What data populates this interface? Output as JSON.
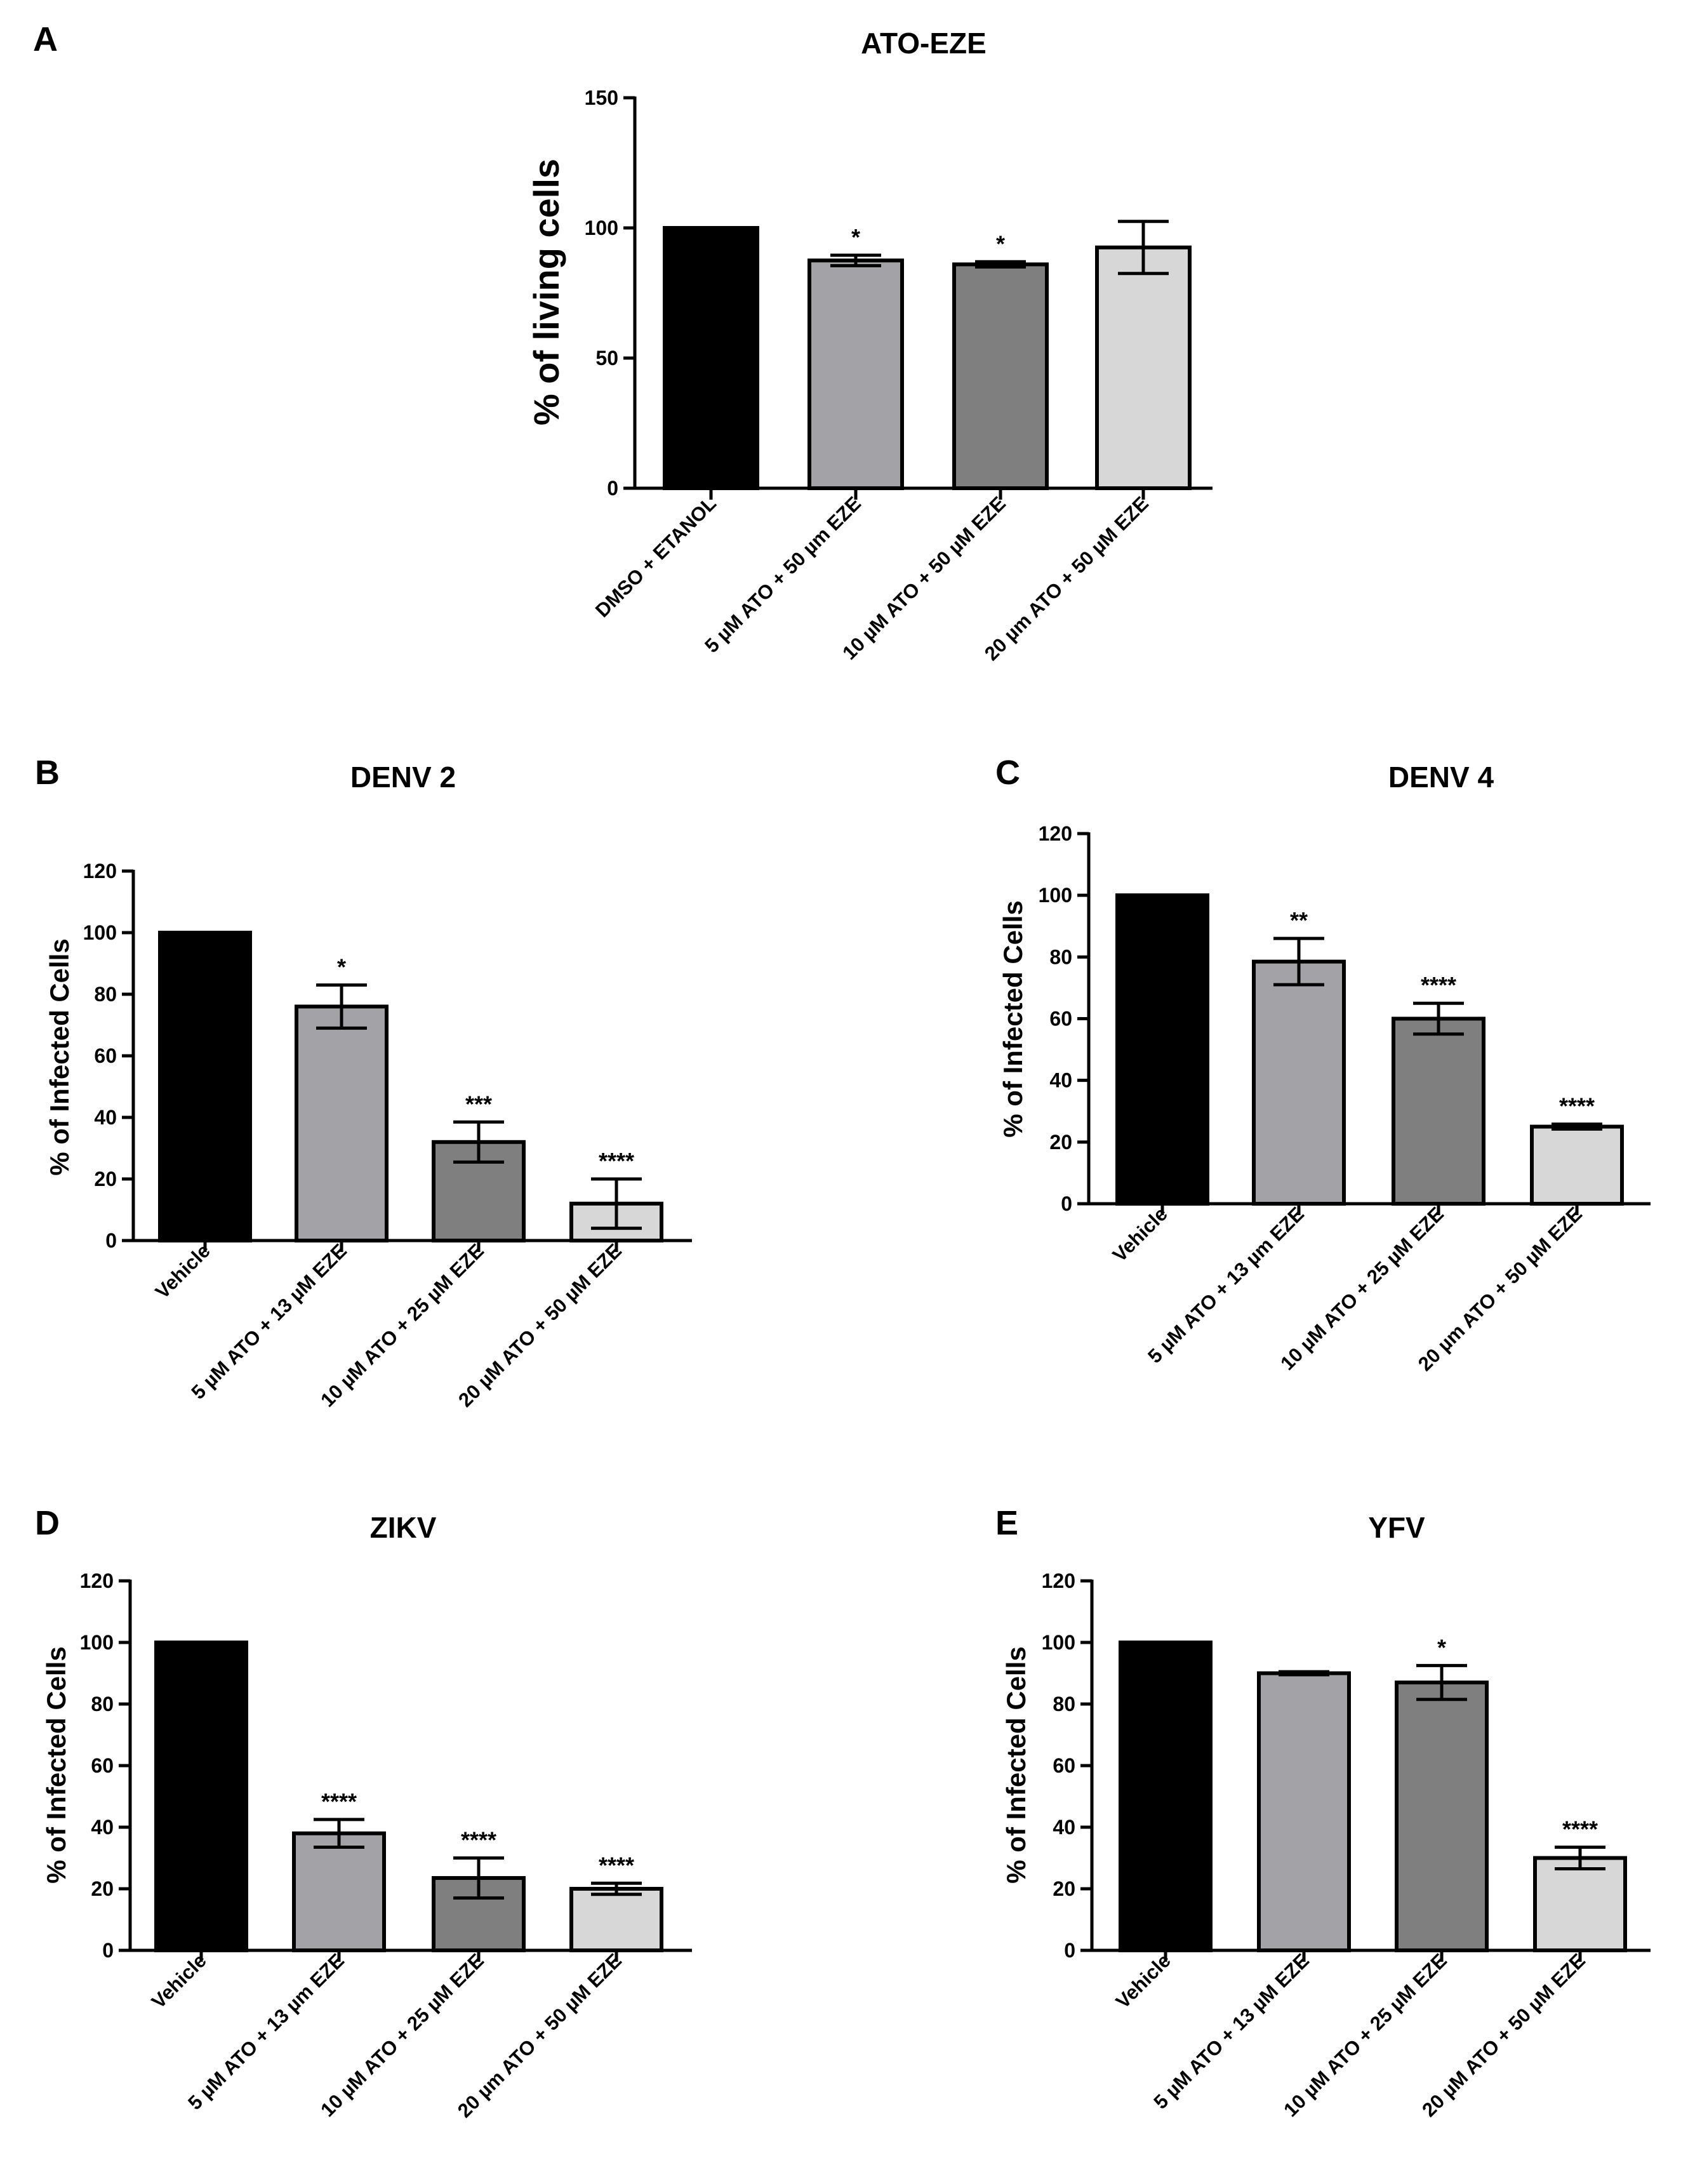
{
  "colors": [
    "#000000",
    "#a3a2a7",
    "#7f7f7f",
    "#d7d7d7"
  ],
  "chart_data": [
    {
      "panel": "A",
      "type": "bar",
      "title": "ATO-EZE",
      "ylabel": "% of living cells",
      "xlabel": "",
      "ylim": [
        0,
        150
      ],
      "yticks": [
        0,
        50,
        100,
        150
      ],
      "categories": [
        "DMSO + ETANOL",
        "5 µM ATO + 50 µm EZE",
        "10 µM ATO + 50 µM EZE",
        "20 µm ATO + 50 µM EZE"
      ],
      "values": [
        100,
        87.5,
        86,
        92.5
      ],
      "errors": [
        0,
        2,
        1,
        10
      ],
      "significance": [
        "",
        "*",
        "*",
        ""
      ]
    },
    {
      "panel": "B",
      "type": "bar",
      "title": "DENV 2",
      "ylabel": "% of Infected Cells",
      "xlabel": "",
      "ylim": [
        0,
        120
      ],
      "yticks": [
        0,
        20,
        40,
        60,
        80,
        100,
        120
      ],
      "categories": [
        "Vehicle",
        "5 µM ATO + 13 µM EZE",
        "10 µM ATO + 25 µM EZE",
        "20 µM ATO + 50 µM EZE"
      ],
      "values": [
        100,
        76,
        32,
        12
      ],
      "errors": [
        0,
        7,
        6.5,
        8
      ],
      "significance": [
        "",
        "*",
        "***",
        "****"
      ]
    },
    {
      "panel": "C",
      "type": "bar",
      "title": "DENV 4",
      "ylabel": "% of Infected Cells",
      "xlabel": "",
      "ylim": [
        0,
        120
      ],
      "yticks": [
        0,
        20,
        40,
        60,
        80,
        100,
        120
      ],
      "categories": [
        "Vehicle",
        "5 µM ATO + 13 µm EZE",
        "10 µM ATO + 25 µM EZE",
        "20 µm ATO + 50 µM EZE"
      ],
      "values": [
        100,
        78.5,
        60,
        25
      ],
      "errors": [
        0,
        7.5,
        5,
        0.8
      ],
      "significance": [
        "",
        "**",
        "****",
        "****"
      ]
    },
    {
      "panel": "D",
      "type": "bar",
      "title": "ZIKV",
      "ylabel": "% of Infected Cells",
      "xlabel": "",
      "ylim": [
        0,
        120
      ],
      "yticks": [
        0,
        20,
        40,
        60,
        80,
        100,
        120
      ],
      "categories": [
        "Vehicle",
        "5 µM ATO + 13 µm EZE",
        "10 µM ATO + 25 µM EZE",
        "20 µm ATO + 50 µM EZE"
      ],
      "values": [
        100,
        38,
        23.5,
        20
      ],
      "errors": [
        0,
        4.5,
        6.5,
        1.8
      ],
      "significance": [
        "",
        "****",
        "****",
        "****"
      ]
    },
    {
      "panel": "E",
      "type": "bar",
      "title": "YFV",
      "ylabel": "% of Infected Cells",
      "xlabel": "",
      "ylim": [
        0,
        120
      ],
      "yticks": [
        0,
        20,
        40,
        60,
        80,
        100,
        120
      ],
      "categories": [
        "Vehicle",
        "5 µM ATO + 13 µM EZE",
        "10 µM ATO + 25 µM EZE",
        "20 µM ATO + 50 µM EZE"
      ],
      "values": [
        100,
        90,
        87,
        30
      ],
      "errors": [
        0,
        0.5,
        5.5,
        3.5
      ],
      "significance": [
        "",
        "",
        "*",
        "****"
      ]
    }
  ]
}
